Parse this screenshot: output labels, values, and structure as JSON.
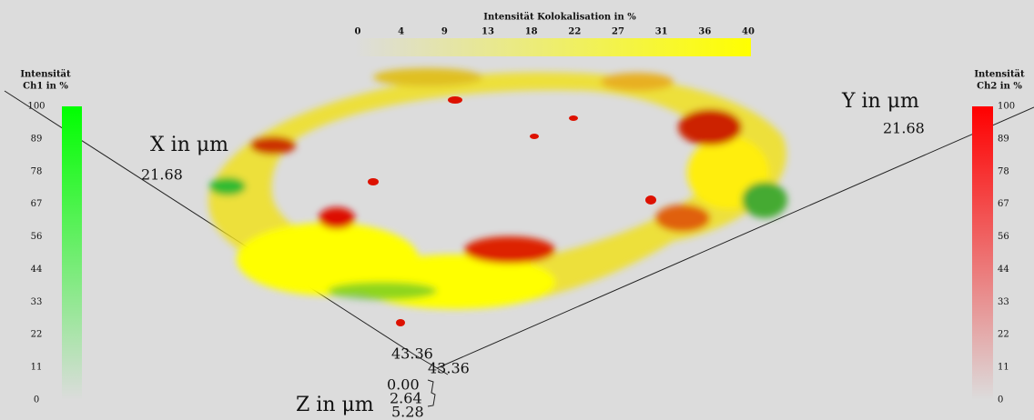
{
  "top_colorbar": {
    "title": "Intensität Kolokalisation in %",
    "ticks": [
      0,
      4,
      9,
      13,
      18,
      22,
      27,
      31,
      36,
      40
    ]
  },
  "left_colorbar": {
    "title": [
      "Intensität",
      "Ch1 in %"
    ],
    "ticks": [
      100,
      89,
      78,
      67,
      56,
      44,
      33,
      22,
      11,
      0
    ]
  },
  "right_colorbar": {
    "title": [
      "Intensität",
      "Ch2 in %"
    ],
    "ticks": [
      100,
      89,
      78,
      67,
      56,
      44,
      33,
      22,
      11,
      0
    ]
  },
  "axes": {
    "x": {
      "label": "X in μm",
      "max": "21.68",
      "origin": "43.36"
    },
    "y": {
      "label": "Y in μm",
      "max": "21.68",
      "origin": "43.36"
    },
    "z": {
      "label": "Z in μm",
      "ticks": [
        "0.00",
        "2.64",
        "5.28"
      ]
    }
  }
}
